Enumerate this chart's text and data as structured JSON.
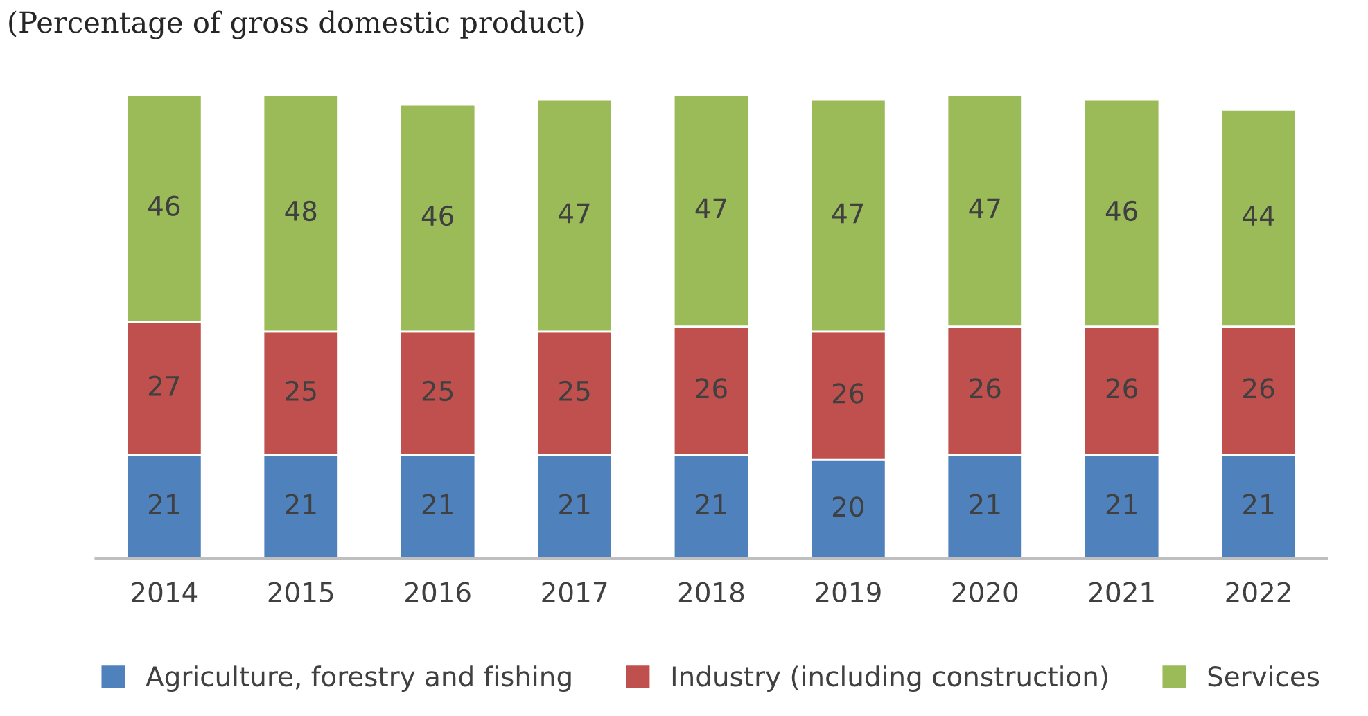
{
  "chart_data": {
    "type": "bar",
    "title": "(Percentage of gross domestic product)",
    "categories": [
      "2014",
      "2015",
      "2016",
      "2017",
      "2018",
      "2019",
      "2020",
      "2021",
      "2022"
    ],
    "stacked": true,
    "data_labels": true,
    "legend": "bottom",
    "grid": false,
    "series": [
      {
        "name": "Agriculture, forestry and fishing",
        "color": "#4f81bd",
        "values": [
          21,
          21,
          21,
          21,
          21,
          20,
          21,
          21,
          21
        ]
      },
      {
        "name": "Industry (including construction)",
        "color": "#c0504d",
        "values": [
          27,
          25,
          25,
          25,
          26,
          26,
          26,
          26,
          26
        ]
      },
      {
        "name": "Services",
        "color": "#9bbb59",
        "values": [
          46,
          48,
          46,
          47,
          47,
          47,
          47,
          46,
          44
        ]
      }
    ]
  }
}
